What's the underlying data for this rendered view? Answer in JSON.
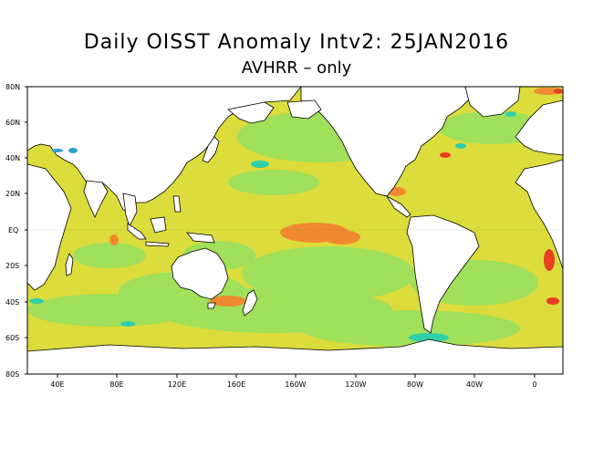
{
  "title": "Daily OISST Anomaly Intv2: 25JAN2016",
  "subtitle": "AVHRR – only",
  "lat_labels": [
    "80N",
    "60N",
    "40N",
    "20N",
    "EQ",
    "20S",
    "40S",
    "60S",
    "80S"
  ],
  "lon_labels": [
    "40E",
    "80E",
    "120E",
    "160E",
    "160W",
    "120W",
    "80W",
    "40W",
    "0"
  ],
  "colors": {
    "ocean_neutral": "#dcdc3c",
    "ocean_cool": "#a0e05a",
    "ocean_cold": "#2ecfa8",
    "ocean_colder": "#2aa0d0",
    "ocean_warm": "#f5c850",
    "ocean_hot": "#f08a30",
    "ocean_hotter": "#e84020",
    "land": "#ffffff",
    "coast": "#000000"
  }
}
